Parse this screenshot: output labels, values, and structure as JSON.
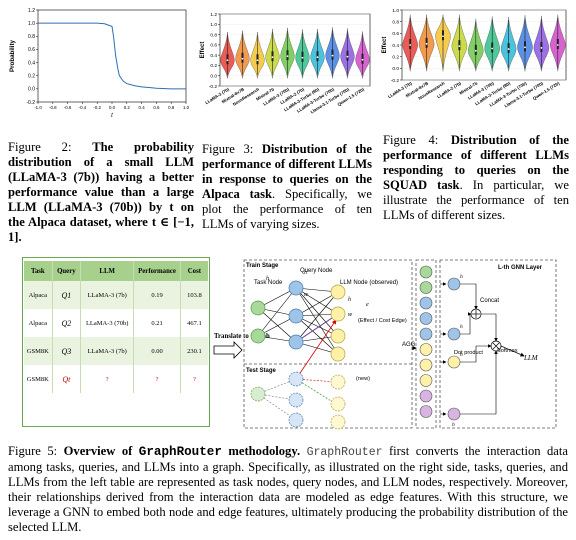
{
  "fig2": {
    "caption_label": "Figure 2:",
    "caption_bold": "The probability distribution of a small LLM (LLaMA-3 (7b)) having a better performance value than a large LLM (LLaMA-3 (70b)) by t on the Alpaca dataset, where t ∈ [−1, 1].",
    "chart_data": {
      "type": "line",
      "xlabel": "t",
      "ylabel": "Probability",
      "xlim": [
        -1.0,
        1.0
      ],
      "ylim": [
        -0.2,
        1.2
      ],
      "xticks": [
        "-1.0",
        "-0.8",
        "-0.6",
        "-0.4",
        "-0.2",
        "0.0",
        "0.2",
        "0.4",
        "0.6",
        "0.8",
        "1.0"
      ],
      "yticks": [
        "-0.2",
        "0.0",
        "0.2",
        "0.4",
        "0.6",
        "0.8",
        "1.0",
        "1.2"
      ],
      "grid": false,
      "x": [
        -1.0,
        -0.8,
        -0.6,
        -0.4,
        -0.2,
        -0.1,
        -0.05,
        0.0,
        0.02,
        0.05,
        0.08,
        0.1,
        0.15,
        0.2,
        0.3,
        0.4,
        0.5,
        0.6,
        0.8,
        1.0
      ],
      "y": [
        1.0,
        1.0,
        1.0,
        1.0,
        1.0,
        0.99,
        0.97,
        0.95,
        0.8,
        0.5,
        0.3,
        0.2,
        0.12,
        0.08,
        0.05,
        0.03,
        0.02,
        0.01,
        0.0,
        0.0
      ]
    }
  },
  "fig3": {
    "caption_label": "Figure 3:",
    "caption_bold": "Distribution of the performance of different LLMs in response to queries on the Alpaca task",
    "caption_rest": ". Specifically, we plot the performance of ten LLMs of varying sizes.",
    "chart_data": {
      "type": "violin",
      "ylabel": "Effect",
      "ylim": [
        -0.2,
        1.2
      ],
      "yticks": [
        "-0.2",
        "0.0",
        "0.2",
        "0.4",
        "0.6",
        "0.8",
        "1.0",
        "1.2"
      ],
      "categories": [
        "LLaMA-3 (7b)",
        "Mixtral-8x7B",
        "NousResearch",
        "Mistral-7b",
        "LLaMA-3 (70b)",
        "LLaMA-2 (7b)",
        "LLaMA-3-Turbo (8b)",
        "LLaMA-3-Turbo (70b)",
        "Llama-3.1-Turbo (70b)",
        "Qwen-1.5 (72b)"
      ],
      "medians": [
        0.3,
        0.33,
        0.3,
        0.36,
        0.38,
        0.35,
        0.36,
        0.39,
        0.37,
        0.31
      ],
      "colors": [
        "#e8403a",
        "#f08a30",
        "#f5c330",
        "#c3d52c",
        "#6cc84a",
        "#30c088",
        "#2cb8d8",
        "#3f7ee0",
        "#8a58e0",
        "#d048c8"
      ]
    }
  },
  "fig4": {
    "caption_label": "Figure 4:",
    "caption_bold": "Distribution of the performance of different LLMs responding to queries on the SQUAD task",
    "caption_rest": ". In particular, we illustrate the performance of ten LLMs of different sizes.",
    "chart_data": {
      "type": "violin",
      "ylabel": "Effect",
      "ylim": [
        -0.2,
        1.0
      ],
      "yticks": [
        "-0.2",
        "0.0",
        "0.2",
        "0.4",
        "0.6",
        "0.8",
        "1.0"
      ],
      "categories": [
        "LLaMA-3 (7b)",
        "Mixtral-8x7B",
        "NousResearch",
        "LLaMA-2 (7b)",
        "Mistral-7b",
        "LLaMA-3 (70b)",
        "LLaMA-3-Turbo (8b)",
        "LLaMA-3-Turbo (70b)",
        "Llama-3.1-Turbo (70b)",
        "Qwen-1.5 (72b)"
      ],
      "medians": [
        0.4,
        0.42,
        0.55,
        0.38,
        0.3,
        0.34,
        0.33,
        0.36,
        0.35,
        0.4
      ],
      "colors": [
        "#e8403a",
        "#f08a30",
        "#f5c330",
        "#c3d52c",
        "#6cc84a",
        "#30c088",
        "#2cb8d8",
        "#3f7ee0",
        "#8a58e0",
        "#d048c8"
      ]
    }
  },
  "fig5": {
    "table": {
      "headers": [
        "Task",
        "Query",
        "LLM",
        "Performance",
        "Cost"
      ],
      "rows": [
        {
          "task": "Alpaca",
          "query": "Q1",
          "llm": "LLaMA-3 (7b)",
          "perf": "0.19",
          "cost": "103.8"
        },
        {
          "task": "Alpaca",
          "query": "Q2",
          "llm": "LLaMA-3 (70b)",
          "perf": "0.21",
          "cost": "467.1"
        },
        {
          "task": "GSM8K",
          "query": "Q3",
          "llm": "LLaMA-3 (7b)",
          "perf": "0.00",
          "cost": "230.1"
        },
        {
          "task": "GSM8K",
          "query": "Qt",
          "llm": "?",
          "perf": "?",
          "cost": "?"
        }
      ]
    },
    "translate_label": "Translate to Graph",
    "train_stage": "Train Stage",
    "test_stage": "Test Stage",
    "task_node": "Task Node",
    "query_node": "Query Node",
    "llm_node": "LLM Node (observed)",
    "effect_cost": "(Effect / Cost Edge)",
    "new_label": "(new)",
    "agg": "AGG",
    "gnn_layer": "L-th GNN Layer",
    "concat": "Concat",
    "dot_product": "Dot product",
    "softmax": "Softmax",
    "llm_out": "LLM",
    "caption_label": "Figure 5:",
    "caption_bold_a": "Overview of ",
    "caption_bold_b": "GraphRouter",
    "caption_bold_c": " methodology",
    "caption_mono": "GraphRouter",
    "caption_rest": " first converts the interaction data among tasks, queries, and LLMs into a graph. Specifically, as illustrated on the right side, tasks, queries, and LLMs from the left table are represented as task nodes, query nodes, and LLM nodes, respectively. Moreover, their relationships derived from the interaction data are modeled as edge features. With this structure, we leverage a GNN to embed both node and edge features, ultimately producing the probability distribution of the selected LLM."
  }
}
